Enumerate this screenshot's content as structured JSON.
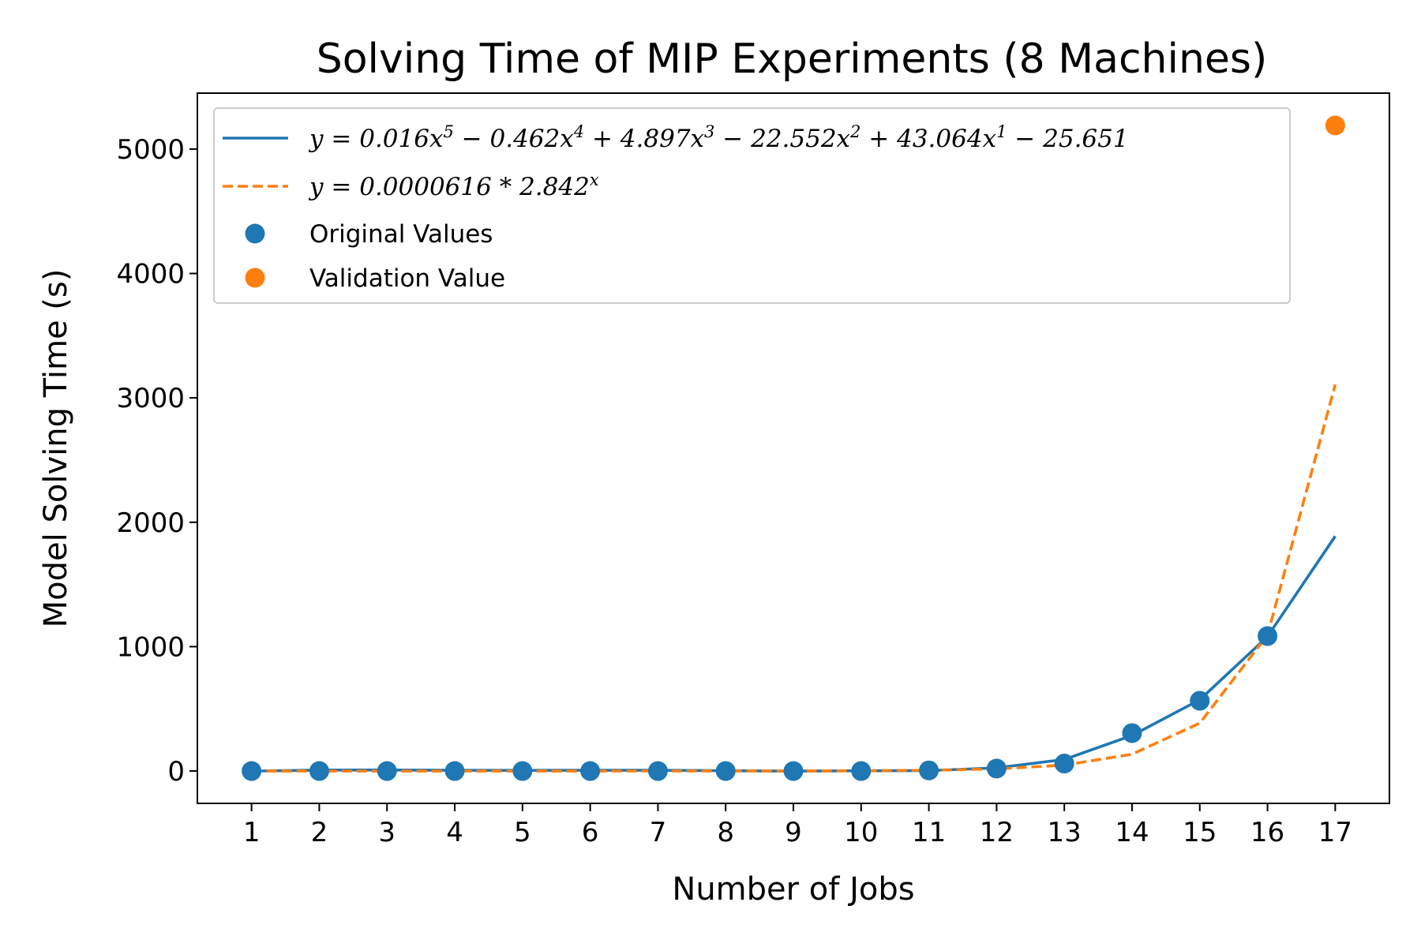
{
  "chart_data": {
    "type": "scatter",
    "title": "Solving Time of MIP Experiments (8 Machines)",
    "xlabel": "Number of Jobs",
    "ylabel": "Model Solving Time (s)",
    "xlim": [
      0.2,
      17.8
    ],
    "ylim": [
      -260,
      5450
    ],
    "x_ticks": [
      1,
      2,
      3,
      4,
      5,
      6,
      7,
      8,
      9,
      10,
      11,
      12,
      13,
      14,
      15,
      16,
      17
    ],
    "y_ticks": [
      0,
      1000,
      2000,
      3000,
      4000,
      5000
    ],
    "grid": false,
    "legend_position": "top",
    "series": [
      {
        "name": "y = 0.016x^5 − 0.462x^4 + 4.897x^3 − 22.552x^2 + 43.064x^1 − 25.651",
        "kind": "line",
        "style": "solid",
        "color": "#1f77b4",
        "x": [
          1,
          2,
          3,
          4,
          5,
          6,
          7,
          8,
          9,
          10,
          11,
          12,
          13,
          14,
          15,
          16,
          17
        ],
        "y": [
          -0.7,
          7.6,
          8.2,
          6.0,
          5.1,
          6.3,
          6.3,
          2.6,
          -0.8,
          2.4,
          3.3,
          25.5,
          92.8,
          286,
          573,
          1081,
          1888
        ]
      },
      {
        "name": "y = 0.0000616 * 2.842^x",
        "kind": "line",
        "style": "dashed",
        "color": "#ff7f0e",
        "x": [
          1,
          2,
          3,
          4,
          5,
          6,
          7,
          8,
          9,
          10,
          11,
          12,
          13,
          14,
          15,
          16,
          17
        ],
        "y": [
          0.0002,
          0.0005,
          0.0014,
          0.004,
          0.011,
          0.032,
          0.09,
          0.26,
          0.73,
          2.1,
          5.9,
          16.8,
          47.6,
          135,
          385,
          1093,
          3107
        ]
      },
      {
        "name": "Original Values",
        "kind": "scatter",
        "color": "#1f77b4",
        "x": [
          1,
          2,
          3,
          4,
          5,
          6,
          7,
          8,
          9,
          10,
          11,
          12,
          13,
          14,
          15,
          16
        ],
        "y": [
          0,
          0,
          0,
          0,
          0,
          0,
          0,
          0,
          0,
          0,
          5,
          20,
          60,
          305,
          565,
          1085
        ]
      },
      {
        "name": "Validation Value",
        "kind": "scatter",
        "color": "#ff7f0e",
        "x": [
          17
        ],
        "y": [
          5190
        ]
      }
    ]
  }
}
